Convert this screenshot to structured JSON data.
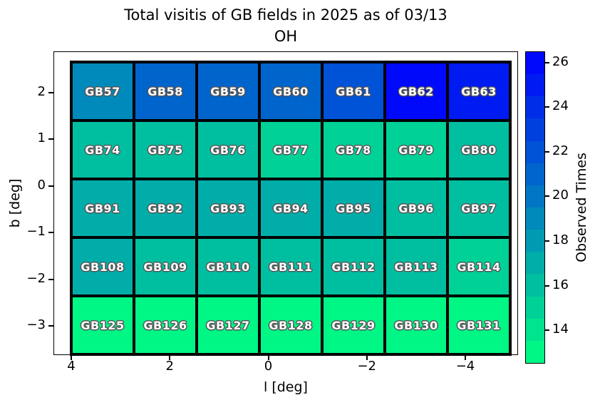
{
  "chart_data": {
    "type": "heatmap",
    "title": "Total visitis of GB fields in 2025 as of 03/13",
    "subtitle": "OH",
    "xlabel": "l [deg]",
    "ylabel": "b [deg]",
    "colorbar_label": "Observed Times",
    "colormap": "winter_r",
    "value_range": [
      12.5,
      26.5
    ],
    "colorbar_ticks": [
      26,
      24,
      22,
      20,
      18,
      16,
      14
    ],
    "x_ticks": [
      4,
      2,
      0,
      -2,
      -4
    ],
    "y_ticks": [
      2,
      1,
      0,
      -1,
      -2,
      -3
    ],
    "grid_on": true,
    "rows": [
      {
        "fields": [
          "GB57",
          "GB58",
          "GB59",
          "GB60",
          "GB61",
          "GB62",
          "GB63"
        ],
        "values": [
          19,
          21,
          21,
          21,
          22,
          26,
          25
        ]
      },
      {
        "fields": [
          "GB74",
          "GB75",
          "GB76",
          "GB77",
          "GB78",
          "GB79",
          "GB80"
        ],
        "values": [
          16,
          16,
          16,
          15,
          15,
          15,
          16
        ]
      },
      {
        "fields": [
          "GB91",
          "GB92",
          "GB93",
          "GB94",
          "GB95",
          "GB96",
          "GB97"
        ],
        "values": [
          17,
          17,
          17,
          17,
          17,
          16,
          16
        ]
      },
      {
        "fields": [
          "GB108",
          "GB109",
          "GB110",
          "GB111",
          "GB112",
          "GB113",
          "GB114"
        ],
        "values": [
          17,
          16,
          16,
          16,
          16,
          16,
          15
        ]
      },
      {
        "fields": [
          "GB125",
          "GB126",
          "GB127",
          "GB128",
          "GB129",
          "GB130",
          "GB131"
        ],
        "values": [
          13,
          13,
          13,
          13,
          13,
          13,
          13
        ]
      }
    ]
  }
}
